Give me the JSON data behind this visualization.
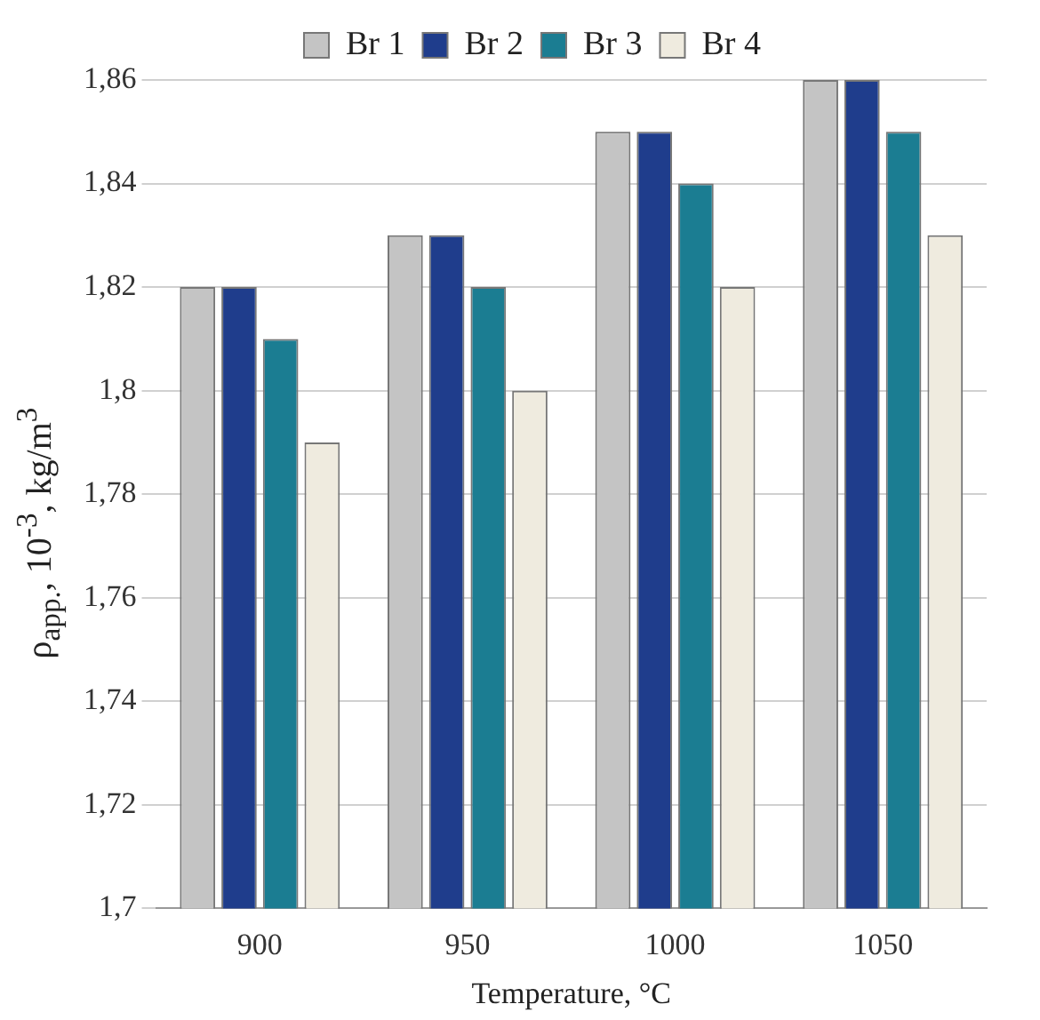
{
  "chart_data": {
    "type": "bar",
    "xlabel": "Temperature, °C",
    "ylabel": "ρ$_{app.}$, 10$^{-3}$, kg/m$^{3}$",
    "categories": [
      "900",
      "950",
      "1000",
      "1050"
    ],
    "series": [
      {
        "name": "Br 1",
        "color": "#c4c4c4",
        "values": [
          1.82,
          1.83,
          1.85,
          1.86
        ]
      },
      {
        "name": "Br 2",
        "color": "#1f3d8c",
        "values": [
          1.82,
          1.83,
          1.85,
          1.86
        ]
      },
      {
        "name": "Br 3",
        "color": "#1b7d92",
        "values": [
          1.81,
          1.82,
          1.84,
          1.85
        ]
      },
      {
        "name": "Br 4",
        "color": "#efebdf",
        "values": [
          1.79,
          1.8,
          1.82,
          1.83
        ]
      }
    ],
    "ylim": [
      1.7,
      1.86
    ],
    "yticks": [
      {
        "value": 1.7,
        "label": "1,7"
      },
      {
        "value": 1.72,
        "label": "1,72"
      },
      {
        "value": 1.74,
        "label": "1,74"
      },
      {
        "value": 1.76,
        "label": "1,76"
      },
      {
        "value": 1.78,
        "label": "1,78"
      },
      {
        "value": 1.8,
        "label": "1,8"
      },
      {
        "value": 1.82,
        "label": "1,82"
      },
      {
        "value": 1.84,
        "label": "1,84"
      },
      {
        "value": 1.86,
        "label": "1,86"
      }
    ],
    "grid": "y",
    "legend": "top"
  }
}
